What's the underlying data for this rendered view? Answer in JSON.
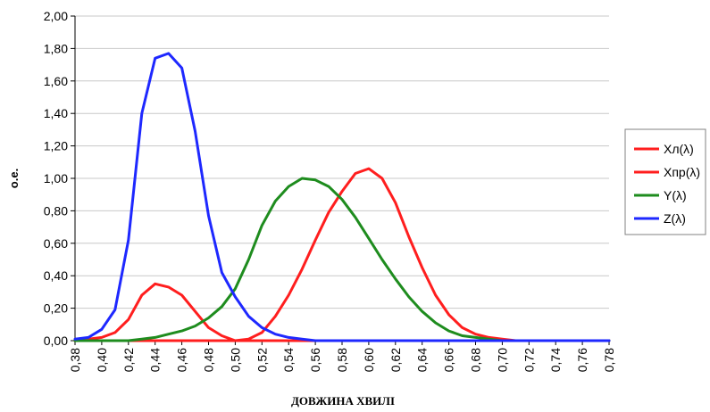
{
  "chart_data": {
    "type": "line",
    "xlabel": "ДОВЖИНА ХВИЛІ",
    "ylabel": "о.е.",
    "ylim": [
      0,
      2.0
    ],
    "xlim": [
      0.38,
      0.78
    ],
    "y_ticks": [
      "0,00",
      "0,20",
      "0,40",
      "0,60",
      "0,80",
      "1,00",
      "1,20",
      "1,40",
      "1,60",
      "1,80",
      "2,00"
    ],
    "x_ticks": [
      "0,38",
      "0,40",
      "0,42",
      "0,44",
      "0,46",
      "0,48",
      "0,50",
      "0,52",
      "0,54",
      "0,56",
      "0,58",
      "0,60",
      "0,62",
      "0,64",
      "0,66",
      "0,68",
      "0,70",
      "0,72",
      "0,74",
      "0,76",
      "0,78"
    ],
    "grid": "horizontal",
    "legend_position": "right",
    "x": [
      0.38,
      0.39,
      0.4,
      0.41,
      0.42,
      0.43,
      0.44,
      0.45,
      0.46,
      0.47,
      0.48,
      0.49,
      0.5,
      0.51,
      0.52,
      0.53,
      0.54,
      0.55,
      0.56,
      0.57,
      0.58,
      0.59,
      0.6,
      0.61,
      0.62,
      0.63,
      0.64,
      0.65,
      0.66,
      0.67,
      0.68,
      0.69,
      0.7,
      0.71,
      0.72,
      0.73,
      0.74,
      0.75,
      0.76,
      0.77,
      0.78
    ],
    "series": [
      {
        "name": "Хл(λ)",
        "color": "#ff1e1e",
        "values": [
          0.0,
          0.01,
          0.02,
          0.05,
          0.13,
          0.28,
          0.35,
          0.33,
          0.28,
          0.18,
          0.08,
          0.03,
          0.0,
          0,
          0,
          0,
          0,
          0,
          0,
          0,
          0,
          0,
          0,
          0,
          0,
          0,
          0,
          0,
          0,
          0,
          0,
          0,
          0,
          0,
          0,
          0,
          0,
          0,
          0,
          0,
          0
        ]
      },
      {
        "name": "Хпр(λ)",
        "color": "#ff1e1e",
        "values": [
          0,
          0,
          0,
          0,
          0,
          0,
          0,
          0,
          0,
          0,
          0,
          0,
          0.0,
          0.01,
          0.05,
          0.15,
          0.28,
          0.44,
          0.62,
          0.79,
          0.92,
          1.03,
          1.06,
          1.0,
          0.85,
          0.64,
          0.45,
          0.28,
          0.16,
          0.08,
          0.04,
          0.02,
          0.01,
          0.0,
          0.0,
          0,
          0,
          0,
          0,
          0,
          0
        ]
      },
      {
        "name": "Y(λ)",
        "color": "#1e8c1e",
        "values": [
          0.0,
          0.0,
          0.0,
          0.0,
          0.0,
          0.01,
          0.02,
          0.04,
          0.06,
          0.09,
          0.14,
          0.21,
          0.32,
          0.5,
          0.71,
          0.86,
          0.95,
          1.0,
          0.99,
          0.95,
          0.87,
          0.76,
          0.63,
          0.5,
          0.38,
          0.27,
          0.18,
          0.11,
          0.06,
          0.03,
          0.02,
          0.01,
          0.0,
          0,
          0,
          0,
          0,
          0,
          0,
          0,
          0
        ]
      },
      {
        "name": "Z(λ)",
        "color": "#1e28ff",
        "values": [
          0.01,
          0.02,
          0.07,
          0.19,
          0.62,
          1.4,
          1.74,
          1.77,
          1.68,
          1.29,
          0.77,
          0.42,
          0.27,
          0.15,
          0.08,
          0.04,
          0.02,
          0.01,
          0.0,
          0,
          0,
          0,
          0,
          0,
          0,
          0,
          0,
          0,
          0,
          0,
          0,
          0,
          0,
          0,
          0,
          0,
          0,
          0,
          0,
          0,
          0
        ]
      }
    ]
  }
}
